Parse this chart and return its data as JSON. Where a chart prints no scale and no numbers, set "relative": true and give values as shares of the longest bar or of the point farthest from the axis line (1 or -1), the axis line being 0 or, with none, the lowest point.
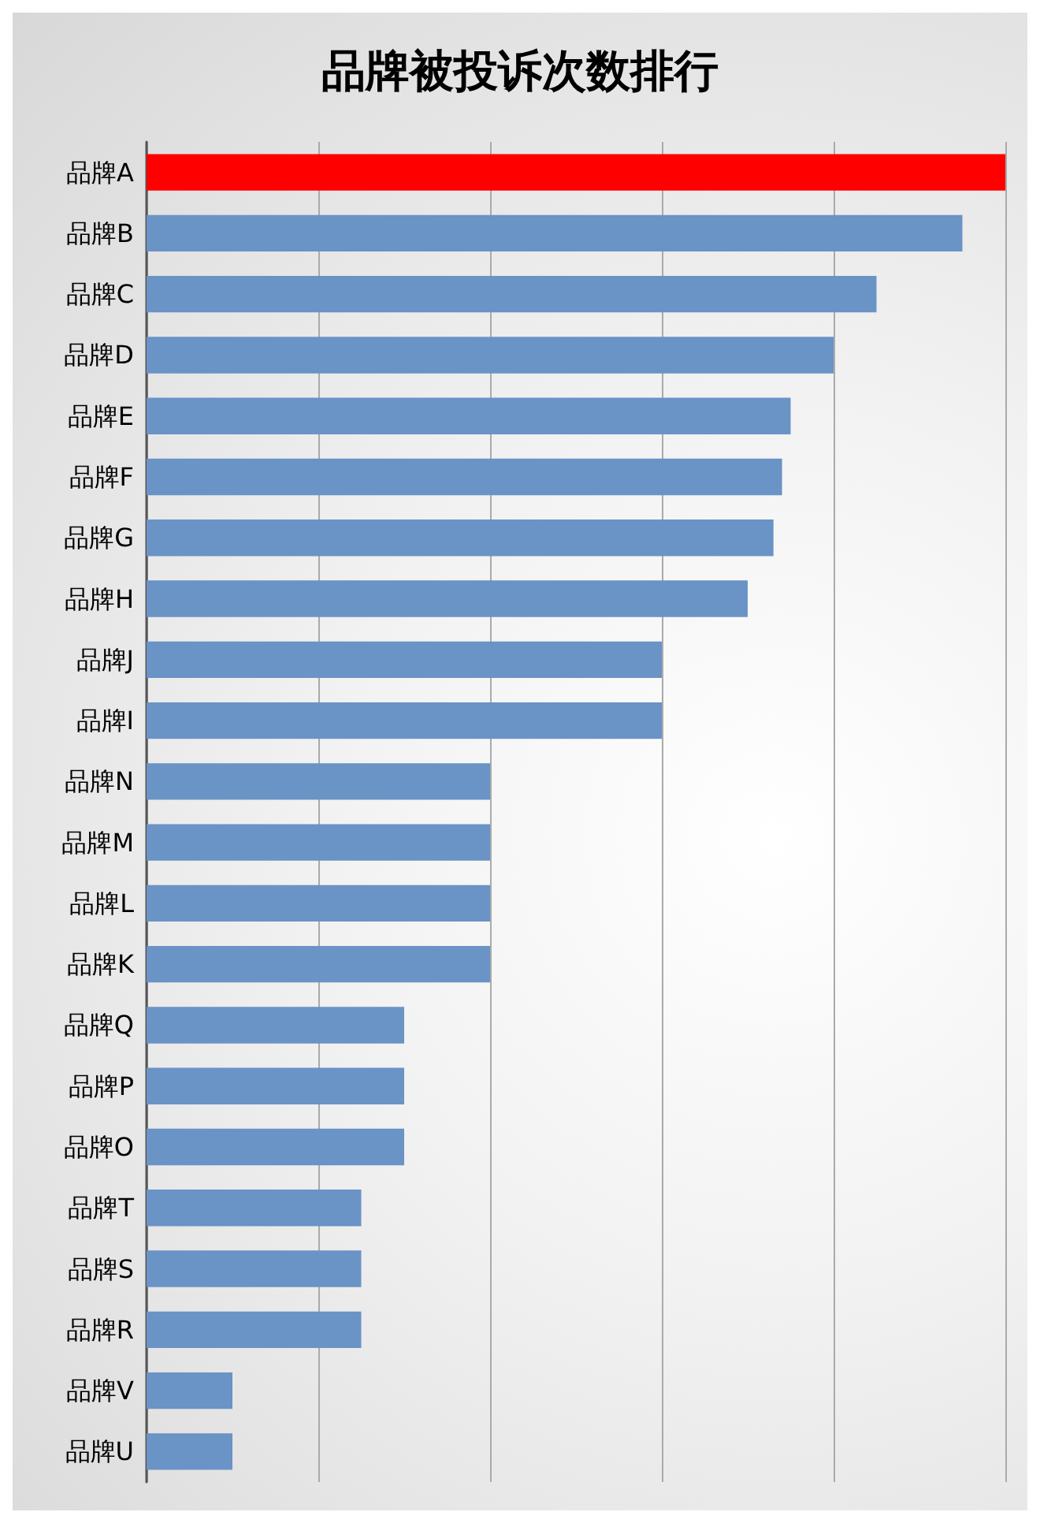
{
  "chart_data": {
    "type": "bar",
    "title": "品牌被投诉次数排行",
    "orientation": "horizontal",
    "relative": true,
    "grid": "x",
    "categories": [
      "品牌A",
      "品牌B",
      "品牌C",
      "品牌D",
      "品牌E",
      "品牌F",
      "品牌G",
      "品牌H",
      "品牌J",
      "品牌I",
      "品牌N",
      "品牌M",
      "品牌L",
      "品牌K",
      "品牌Q",
      "品牌P",
      "品牌O",
      "品牌T",
      "品牌S",
      "品牌R",
      "品牌V",
      "品牌U"
    ],
    "values": [
      1,
      0.95,
      0.85,
      0.8,
      0.75,
      0.74,
      0.73,
      0.7,
      0.6,
      0.6,
      0.4,
      0.4,
      0.4,
      0.4,
      0.3,
      0.3,
      0.3,
      0.25,
      0.25,
      0.25,
      0.1,
      0.1
    ],
    "colors": [
      "#ff0000",
      "#6a93c6",
      "#6a93c6",
      "#6a93c6",
      "#6a93c6",
      "#6a93c6",
      "#6a93c6",
      "#6a93c6",
      "#6a93c6",
      "#6a93c6",
      "#6a93c6",
      "#6a93c6",
      "#6a93c6",
      "#6a93c6",
      "#6a93c6",
      "#6a93c6",
      "#6a93c6",
      "#6a93c6",
      "#6a93c6",
      "#6a93c6",
      "#6a93c6",
      "#6a93c6"
    ]
  }
}
